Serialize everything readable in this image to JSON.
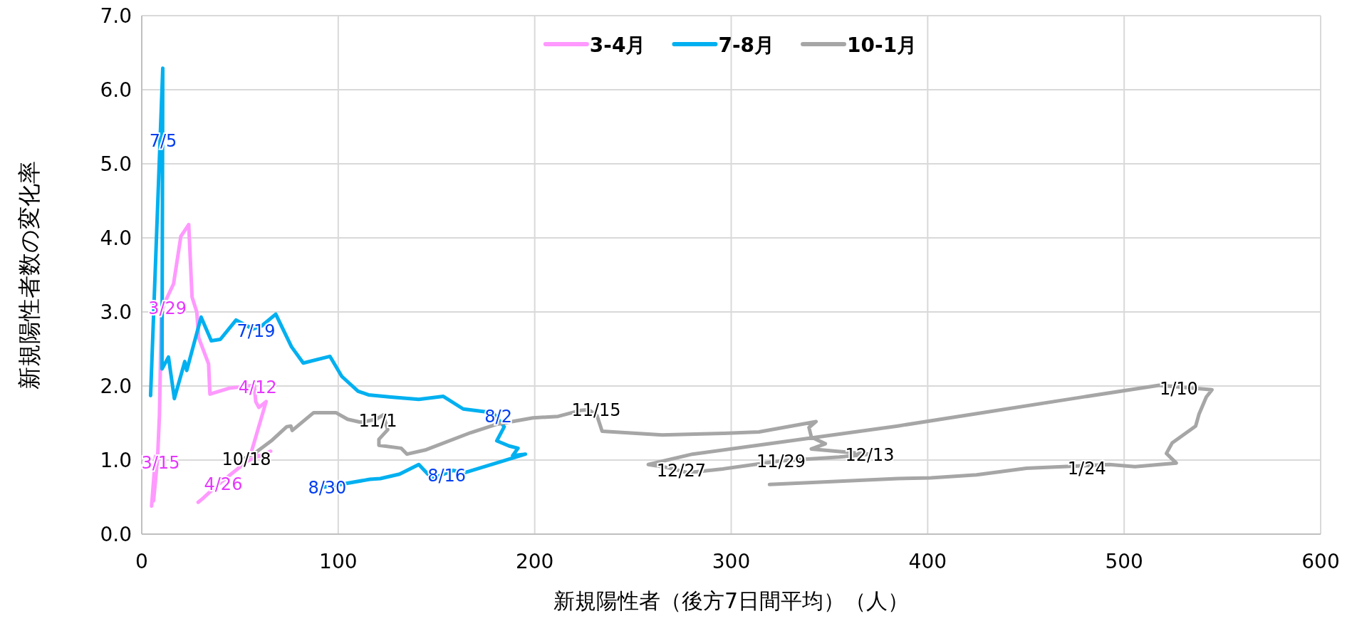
{
  "chart_data": {
    "type": "line",
    "xlabel": "新規陽性者（後方7日間平均）（人）",
    "ylabel": "新規陽性者数の変化率",
    "xlim": [
      0,
      600
    ],
    "xticks": [
      0,
      100,
      200,
      300,
      400,
      500,
      600
    ],
    "ylim": [
      0,
      7
    ],
    "yticks": [
      {
        "value": 0,
        "label": "0.0"
      },
      {
        "value": 1,
        "label": "1.0"
      },
      {
        "value": 2,
        "label": "2.0"
      },
      {
        "value": 3,
        "label": "3.0"
      },
      {
        "value": 4,
        "label": "4.0"
      },
      {
        "value": 5,
        "label": "5.0"
      },
      {
        "value": 6,
        "label": "6.0"
      },
      {
        "value": 7,
        "label": "7.0"
      }
    ],
    "grid": true,
    "legend": "top",
    "line_style": "solid",
    "marker": "none",
    "series": [
      {
        "name": "3-4月",
        "color": "#ff99ff",
        "x": [
          5,
          7,
          6,
          8,
          9,
          10,
          13,
          16.2,
          19.9,
          23.9,
          25.6,
          28,
          29,
          34,
          34.7,
          44.5,
          57.3,
          58,
          59.6,
          63.3,
          55.8,
          60,
          65.6,
          54,
          45,
          38,
          31,
          28.7
        ],
        "values": [
          0.38,
          1.05,
          0.45,
          1.0,
          1.6,
          3.0,
          3.2,
          3.38,
          4.02,
          4.18,
          3.2,
          3.0,
          2.65,
          2.3,
          1.89,
          1.97,
          2.01,
          1.79,
          1.71,
          1.79,
          1.11,
          1.05,
          1.12,
          0.99,
          0.8,
          0.65,
          0.48,
          0.43
        ]
      },
      {
        "name": "7-8月",
        "color": "#00b0f0",
        "x": [
          4.5,
          10.7,
          10.3,
          13.6,
          16.6,
          21.9,
          22.9,
          30.2,
          35.4,
          40,
          48,
          56.6,
          61,
          68.2,
          76.2,
          82.2,
          95.8,
          101.8,
          110.1,
          115.4,
          126.7,
          141,
          153.5,
          163.6,
          178.7,
          184.5,
          180.7,
          187,
          191.5,
          188.8,
          195.3,
          181.7,
          164.4,
          158.4,
          147.8,
          141,
          131.2,
          121.4,
          116.1,
          101,
          91.7
        ],
        "values": [
          1.87,
          6.29,
          2.23,
          2.39,
          1.83,
          2.33,
          2.21,
          2.93,
          2.61,
          2.63,
          2.89,
          2.77,
          2.81,
          2.97,
          2.53,
          2.31,
          2.4,
          2.13,
          1.93,
          1.88,
          1.85,
          1.82,
          1.86,
          1.69,
          1.64,
          1.45,
          1.26,
          1.19,
          1.16,
          1.06,
          1.08,
          0.97,
          0.83,
          0.86,
          0.75,
          0.94,
          0.81,
          0.75,
          0.74,
          0.67,
          0.63
        ]
      },
      {
        "name": "10-1月",
        "color": "#a6a6a6",
        "x": [
          52.8,
          57.3,
          66.4,
          73.8,
          75.9,
          76.6,
          87.5,
          98.8,
          104.8,
          111.6,
          119.2,
          122.9,
          125.2,
          120.7,
          120.7,
          132,
          135,
          144.8,
          167.4,
          180.2,
          199.1,
          211.9,
          223.2,
          227.5,
          231.7,
          234.3,
          264.9,
          295.7,
          314.1,
          343.2,
          339.6,
          340.8,
          347.9,
          340.8,
          370.5,
          355,
          325.4,
          295.7,
          277.9,
          267.3,
          257.8,
          280.3,
          313.5,
          349.1,
          384.7,
          478.6,
          517.8,
          544.7,
          541.8,
          538.1,
          536.4,
          524.4,
          521.5,
          526.5,
          505.5,
          492.4,
          450.3,
          424.9,
          401.6,
          384.7,
          319.5
        ],
        "values": [
          1.03,
          1.09,
          1.27,
          1.45,
          1.46,
          1.4,
          1.64,
          1.64,
          1.55,
          1.51,
          1.55,
          1.61,
          1.41,
          1.28,
          1.2,
          1.16,
          1.08,
          1.14,
          1.37,
          1.48,
          1.57,
          1.59,
          1.67,
          1.68,
          1.6,
          1.39,
          1.34,
          1.36,
          1.38,
          1.52,
          1.44,
          1.31,
          1.22,
          1.15,
          1.08,
          1.04,
          0.99,
          0.88,
          0.83,
          0.9,
          0.94,
          1.08,
          1.2,
          1.33,
          1.46,
          1.85,
          2.01,
          1.95,
          1.85,
          1.62,
          1.46,
          1.23,
          1.09,
          0.96,
          0.91,
          0.94,
          0.89,
          0.8,
          0.76,
          0.75,
          0.67
        ]
      }
    ],
    "annotations": [
      {
        "text": "7/5",
        "x": 10.9,
        "y": 5.32
      },
      {
        "text": "3/29",
        "x": 13.1,
        "y": 3.06
      },
      {
        "text": "7/19",
        "x": 58.2,
        "y": 2.75
      },
      {
        "text": "4/12",
        "x": 59,
        "y": 1.99
      },
      {
        "text": "3/15",
        "x": 9.6,
        "y": 0.97
      },
      {
        "text": "10/18",
        "x": 53.3,
        "y": 1.02
      },
      {
        "text": "4/26",
        "x": 41.5,
        "y": 0.68
      },
      {
        "text": "8/30",
        "x": 94.4,
        "y": 0.63
      },
      {
        "text": "8/16",
        "x": 155.2,
        "y": 0.8
      },
      {
        "text": "8/2",
        "x": 181.5,
        "y": 1.6
      },
      {
        "text": "11/1",
        "x": 120.2,
        "y": 1.54
      },
      {
        "text": "11/15",
        "x": 231.3,
        "y": 1.68
      },
      {
        "text": "11/29",
        "x": 325.4,
        "y": 0.99
      },
      {
        "text": "12/13",
        "x": 370.5,
        "y": 1.08
      },
      {
        "text": "12/27",
        "x": 274.6,
        "y": 0.87
      },
      {
        "text": "1/10",
        "x": 527.8,
        "y": 1.97
      },
      {
        "text": "1/24",
        "x": 481,
        "y": 0.89
      }
    ]
  }
}
